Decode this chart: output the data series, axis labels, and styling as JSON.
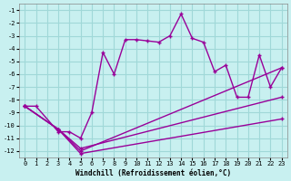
{
  "background_color": "#c8f0f0",
  "grid_color": "#a0d8d8",
  "line_color": "#990099",
  "xlabel": "Windchill (Refroidissement éolien,°C)",
  "ylabel": "",
  "xlim": [
    0,
    23
  ],
  "ylim": [
    -12.5,
    -0.5
  ],
  "yticks": [
    -1,
    -2,
    -3,
    -4,
    -5,
    -6,
    -7,
    -8,
    -9,
    -10,
    -11,
    -12
  ],
  "xticks": [
    0,
    1,
    2,
    3,
    4,
    5,
    6,
    7,
    8,
    9,
    10,
    11,
    12,
    13,
    14,
    15,
    16,
    17,
    18,
    19,
    20,
    21,
    22,
    23
  ],
  "line1_x": [
    0,
    1,
    3,
    4,
    5,
    6,
    7,
    8,
    9,
    10,
    11,
    12,
    13,
    14,
    15,
    16,
    17,
    18,
    19,
    20,
    21,
    22,
    23
  ],
  "line1_y": [
    -8.5,
    -8.5,
    -10.5,
    -10.5,
    -11.0,
    -9.0,
    -4.3,
    -6.0,
    -3.3,
    -3.3,
    -3.4,
    -3.5,
    -3.0,
    -1.3,
    -3.2,
    -3.5,
    -5.8,
    -5.3,
    -7.8,
    -7.8,
    -4.5,
    -7.0,
    -5.5
  ],
  "line2_x": [
    0,
    3,
    5,
    23
  ],
  "line2_y": [
    -8.5,
    -10.3,
    -12.0,
    -5.5
  ],
  "line3_x": [
    0,
    3,
    5,
    23
  ],
  "line3_y": [
    -8.5,
    -10.3,
    -12.2,
    -9.5
  ],
  "line4_x": [
    0,
    3,
    5,
    23
  ],
  "line4_y": [
    -8.5,
    -10.3,
    -11.8,
    -7.8
  ]
}
